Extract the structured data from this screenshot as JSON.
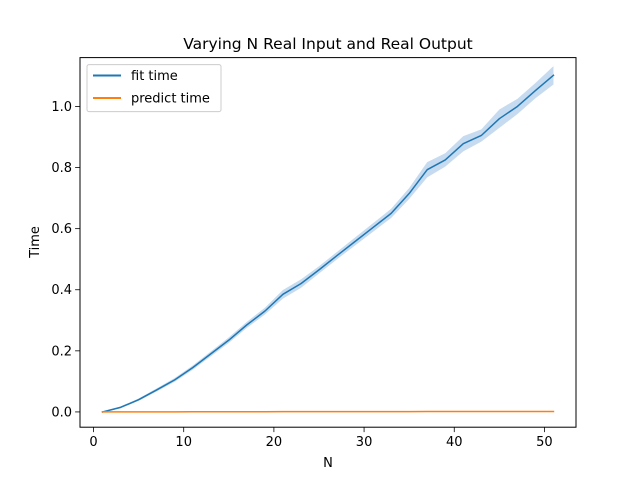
{
  "chart_data": {
    "type": "line",
    "title": "Varying N Real Input and Real Output",
    "xlabel": "N",
    "ylabel": "Time",
    "xlim": [
      -1.5,
      53.5
    ],
    "ylim": [
      -0.05,
      1.16
    ],
    "xticks": [
      0,
      10,
      20,
      30,
      40,
      50
    ],
    "yticks": [
      0.0,
      0.2,
      0.4,
      0.6,
      0.8,
      1.0
    ],
    "xtick_labels": [
      "0",
      "10",
      "20",
      "30",
      "40",
      "50"
    ],
    "ytick_labels": [
      "0.0",
      "0.2",
      "0.4",
      "0.6",
      "0.8",
      "1.0"
    ],
    "grid": false,
    "legend_position": "top-left",
    "x": [
      1,
      3,
      5,
      7,
      9,
      11,
      13,
      15,
      17,
      19,
      21,
      23,
      25,
      27,
      29,
      31,
      33,
      35,
      37,
      39,
      41,
      43,
      45,
      47,
      49,
      51
    ],
    "series": [
      {
        "name": "fit time",
        "color": "#1f77b4",
        "band_color": "#c6dbef",
        "values": [
          0.0,
          0.015,
          0.04,
          0.072,
          0.105,
          0.145,
          0.19,
          0.235,
          0.285,
          0.33,
          0.385,
          0.42,
          0.465,
          0.512,
          0.558,
          0.604,
          0.65,
          0.715,
          0.793,
          0.825,
          0.878,
          0.905,
          0.96,
          1.0,
          1.052,
          1.102
        ],
        "band_halfwidth": [
          0.002,
          0.003,
          0.004,
          0.005,
          0.006,
          0.007,
          0.008,
          0.009,
          0.01,
          0.011,
          0.014,
          0.014,
          0.012,
          0.012,
          0.013,
          0.014,
          0.015,
          0.018,
          0.025,
          0.022,
          0.025,
          0.02,
          0.03,
          0.025,
          0.025,
          0.03
        ]
      },
      {
        "name": "predict time",
        "color": "#ff7f0e",
        "values": [
          0.0,
          0.0,
          0.0,
          0.0,
          0.0,
          0.0005,
          0.0005,
          0.0005,
          0.0005,
          0.0005,
          0.0008,
          0.0008,
          0.0008,
          0.001,
          0.001,
          0.001,
          0.001,
          0.001,
          0.0012,
          0.0012,
          0.0012,
          0.0013,
          0.0013,
          0.0013,
          0.0014,
          0.0015
        ]
      }
    ]
  }
}
